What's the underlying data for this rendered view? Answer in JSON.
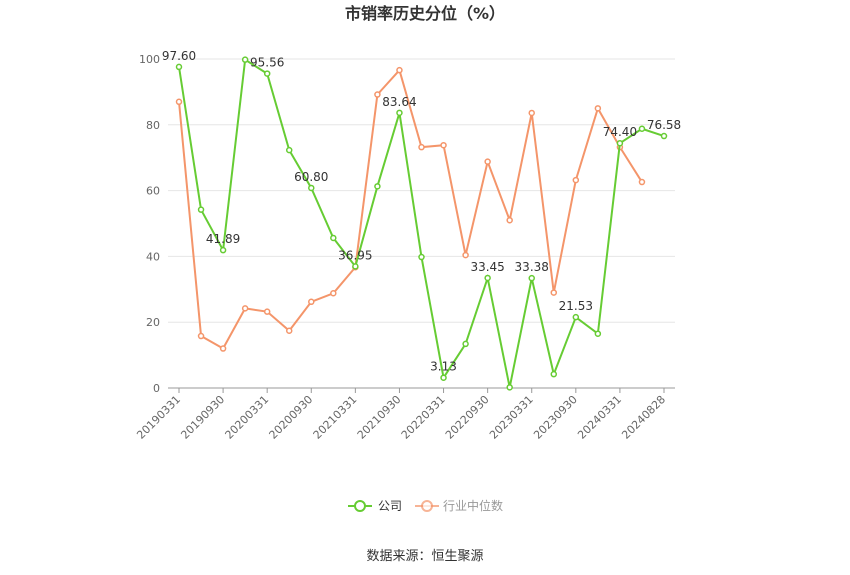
{
  "chart_data": {
    "type": "line",
    "title": "市销率历史分位（%）",
    "x_tick_labels": [
      "20190331",
      "20190930",
      "20200331",
      "20200930",
      "20210331",
      "20210930",
      "20220331",
      "20220930",
      "20230331",
      "20230930",
      "20240331",
      "20240828"
    ],
    "ylim": [
      0,
      100
    ],
    "y_ticks": [
      0,
      20,
      40,
      60,
      80,
      100
    ],
    "grid": true,
    "legend_position": "bottom",
    "series": [
      {
        "name": "公司",
        "color": "#66cc33",
        "values": [
          97.6,
          54.2,
          41.89,
          99.8,
          95.56,
          72.3,
          60.8,
          45.6,
          36.95,
          61.3,
          83.64,
          39.8,
          3.13,
          13.4,
          33.45,
          0.2,
          33.38,
          4.2,
          21.53,
          16.5,
          74.4,
          78.8,
          76.58
        ],
        "data_labels": {
          "0": "97.60",
          "2": "41.89",
          "4": "95.56",
          "6": "60.80",
          "8": "36.95",
          "10": "83.64",
          "12": "3.13",
          "14": "33.45",
          "16": "33.38",
          "18": "21.53",
          "20": "74.40",
          "22": "76.58"
        }
      },
      {
        "name": "行业中位数",
        "color": "#f4956a",
        "values": [
          87.0,
          15.8,
          12.0,
          24.2,
          23.2,
          17.4,
          26.2,
          28.8,
          36.7,
          89.2,
          96.6,
          73.2,
          73.8,
          40.4,
          68.8,
          51.0,
          83.6,
          29.0,
          63.2,
          85.0,
          73.2,
          62.6,
          null
        ]
      }
    ]
  },
  "source_text": "数据来源：恒生聚源"
}
